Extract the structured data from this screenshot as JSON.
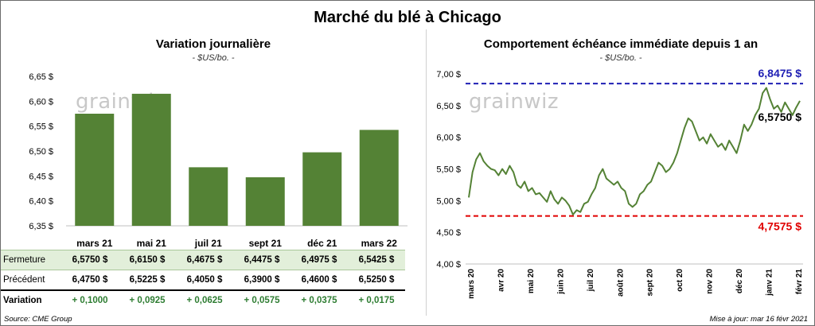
{
  "title": "Marché du blé à Chicago",
  "left_panel": {
    "title": "Variation  journalière",
    "unit": "- $US/bo. -",
    "watermark": "grainwiz"
  },
  "right_panel": {
    "title": "Comportement  échéance immédiate depuis 1 an",
    "unit": "- $US/bo. -",
    "watermark": "grainwiz"
  },
  "table": {
    "rows": [
      {
        "label": "Fermeture",
        "cells": [
          "6,5750  $",
          "6,6150  $",
          "6,4675  $",
          "6,4475  $",
          "6,4975  $",
          "6,5425  $"
        ]
      },
      {
        "label": "Précédent",
        "cells": [
          "6,4750  $",
          "6,5225  $",
          "6,4050  $",
          "6,3900  $",
          "6,4600  $",
          "6,5250  $"
        ]
      },
      {
        "label": "Variation",
        "cells": [
          "+ 0,1000",
          "+ 0,0925",
          "+ 0,0625",
          "+ 0,0575",
          "+ 0,0375",
          "+ 0,0175"
        ]
      }
    ]
  },
  "source": "Source: CME Group",
  "updated": "Mise à jour: mar 16 févr 2021",
  "colors": {
    "bar": "#548235",
    "line": "#548235",
    "max_line": "#1f1fb4",
    "min_line": "#e00000"
  },
  "chart_data": [
    {
      "type": "bar",
      "categories": [
        "mars 21",
        "mai 21",
        "juil 21",
        "sept 21",
        "déc 21",
        "mars 22"
      ],
      "values": [
        6.575,
        6.615,
        6.4675,
        6.4475,
        6.4975,
        6.5425
      ],
      "title": "Variation  journalière",
      "subtitle": "- $US/bo. -",
      "yticks": [
        "6,35 $",
        "6,40 $",
        "6,45 $",
        "6,50 $",
        "6,55 $",
        "6,60 $",
        "6,65 $"
      ],
      "ylim": [
        6.35,
        6.65
      ],
      "grid": false
    },
    {
      "type": "line",
      "title": "Comportement  échéance immédiate depuis 1 an",
      "subtitle": "- $US/bo. -",
      "ylim": [
        4.0,
        7.0
      ],
      "yticks": [
        "4,00 $",
        "4,50 $",
        "5,00 $",
        "5,50 $",
        "6,00 $",
        "6,50 $",
        "7,00 $"
      ],
      "xticks": [
        "mars 20",
        "avr 20",
        "mai 20",
        "juin 20",
        "juil 20",
        "août 20",
        "sept 20",
        "oct 20",
        "nov 20",
        "déc 20",
        "janv 21",
        "févr 21"
      ],
      "series": [
        {
          "values": [
            5.05,
            5.45,
            5.65,
            5.75,
            5.62,
            5.55,
            5.5,
            5.48,
            5.4,
            5.5,
            5.42,
            5.55,
            5.45,
            5.25,
            5.2,
            5.3,
            5.15,
            5.2,
            5.1,
            5.12,
            5.05,
            4.98,
            5.15,
            5.02,
            4.95,
            5.05,
            5.0,
            4.92,
            4.78,
            4.85,
            4.82,
            4.95,
            4.98,
            5.1,
            5.2,
            5.4,
            5.5,
            5.35,
            5.3,
            5.25,
            5.3,
            5.2,
            5.15,
            4.95,
            4.9,
            4.95,
            5.1,
            5.15,
            5.25,
            5.3,
            5.45,
            5.6,
            5.55,
            5.45,
            5.5,
            5.6,
            5.75,
            5.95,
            6.15,
            6.3,
            6.25,
            6.1,
            5.95,
            6.0,
            5.9,
            6.05,
            5.95,
            5.85,
            5.9,
            5.8,
            5.95,
            5.85,
            5.75,
            5.95,
            6.2,
            6.1,
            6.2,
            6.35,
            6.45,
            6.7,
            6.78,
            6.6,
            6.45,
            6.5,
            6.4,
            6.55,
            6.45,
            6.35,
            6.47,
            6.575
          ],
          "start": "2020-03-01",
          "end": "2021-02-16"
        }
      ],
      "reference_lines": [
        {
          "value": 6.8475,
          "label": "6,8475 $"
        },
        {
          "value": 4.7575,
          "label": "4,7575 $"
        }
      ],
      "last_value_label": "6,5750 $",
      "grid": false
    }
  ]
}
